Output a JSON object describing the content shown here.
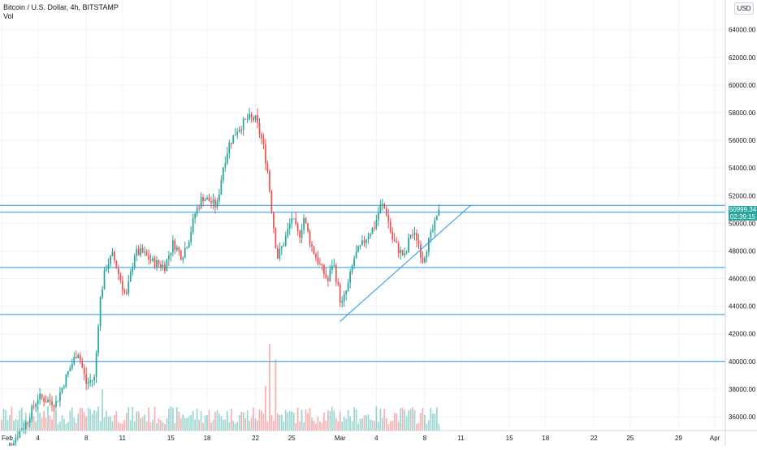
{
  "header": {
    "title": "Bitcoin / U.S. Dollar, 4h, BITSTAMP",
    "vol_label": "Vol"
  },
  "currency_label": "USD",
  "price_tag": {
    "price": "50999.34",
    "countdown": "02:39:15"
  },
  "colors": {
    "up": "#26a69a",
    "down": "#ef5350",
    "line": "#2196f3",
    "grid": "#f0f3fa",
    "axis_text": "#131722"
  },
  "chart_data": {
    "type": "candlestick",
    "y_ticks": [
      36000,
      38000,
      40000,
      42000,
      44000,
      46000,
      48000,
      50000,
      52000,
      54000,
      56000,
      58000,
      60000,
      62000,
      64000
    ],
    "y_tick_labels": [
      "36000.00",
      "38000.00",
      "40000.00",
      "42000.00",
      "44000.00",
      "46000.00",
      "48000.00",
      "50000.00",
      "52000.00",
      "54000.00",
      "56000.00",
      "58000.00",
      "60000.00",
      "62000.00",
      "64000.00"
    ],
    "ylim": [
      35000,
      65100
    ],
    "x_tick_labels": [
      "Feb",
      "4",
      "8",
      "11",
      "15",
      "18",
      "22",
      "25",
      "Mar",
      "4",
      "8",
      "11",
      "15",
      "18",
      "22",
      "25",
      "29",
      "Apr"
    ],
    "x_tick_days": [
      0,
      3,
      7,
      10,
      14,
      17,
      21,
      24,
      28,
      31,
      35,
      38,
      42,
      45,
      49,
      52,
      56,
      59
    ],
    "xlim_days": [
      0,
      60
    ],
    "horizontal_levels": [
      51300,
      50800,
      46800,
      43400,
      40000
    ],
    "trendline": {
      "from": {
        "day": 28.0,
        "price": 42900
      },
      "to": {
        "day": 38.8,
        "price": 51300
      }
    },
    "last_price": 50999.34,
    "anchors": [
      {
        "day": 0,
        "price": 33200
      },
      {
        "day": 2,
        "price": 35500
      },
      {
        "day": 3,
        "price": 37400
      },
      {
        "day": 4.5,
        "price": 37000
      },
      {
        "day": 5.5,
        "price": 39200
      },
      {
        "day": 6.3,
        "price": 40800
      },
      {
        "day": 7,
        "price": 38400
      },
      {
        "day": 7.7,
        "price": 38800
      },
      {
        "day": 8.1,
        "price": 44200
      },
      {
        "day": 8.6,
        "price": 46800
      },
      {
        "day": 9.2,
        "price": 47700
      },
      {
        "day": 9.8,
        "price": 46000
      },
      {
        "day": 10.3,
        "price": 44600
      },
      {
        "day": 11,
        "price": 47800
      },
      {
        "day": 11.6,
        "price": 47900
      },
      {
        "day": 12.5,
        "price": 47200
      },
      {
        "day": 13.5,
        "price": 46900
      },
      {
        "day": 14.2,
        "price": 48600
      },
      {
        "day": 14.9,
        "price": 47600
      },
      {
        "day": 15.5,
        "price": 48900
      },
      {
        "day": 16,
        "price": 50700
      },
      {
        "day": 16.6,
        "price": 51900
      },
      {
        "day": 17.2,
        "price": 51600
      },
      {
        "day": 17.8,
        "price": 51200
      },
      {
        "day": 18.3,
        "price": 54000
      },
      {
        "day": 18.8,
        "price": 55700
      },
      {
        "day": 19.5,
        "price": 56800
      },
      {
        "day": 20.4,
        "price": 57600
      },
      {
        "day": 21.0,
        "price": 57500
      },
      {
        "day": 21.6,
        "price": 55800
      },
      {
        "day": 22.0,
        "price": 53800
      },
      {
        "day": 22.4,
        "price": 50500
      },
      {
        "day": 22.8,
        "price": 47500
      },
      {
        "day": 23.4,
        "price": 48700
      },
      {
        "day": 24.0,
        "price": 50400
      },
      {
        "day": 24.6,
        "price": 49000
      },
      {
        "day": 25.0,
        "price": 50400
      },
      {
        "day": 25.6,
        "price": 48400
      },
      {
        "day": 26.3,
        "price": 47000
      },
      {
        "day": 27.0,
        "price": 45800
      },
      {
        "day": 27.4,
        "price": 47300
      },
      {
        "day": 27.9,
        "price": 45000
      },
      {
        "day": 28.1,
        "price": 44000
      },
      {
        "day": 28.6,
        "price": 45300
      },
      {
        "day": 29.2,
        "price": 47600
      },
      {
        "day": 29.8,
        "price": 48400
      },
      {
        "day": 30.3,
        "price": 49200
      },
      {
        "day": 30.8,
        "price": 49700
      },
      {
        "day": 31.4,
        "price": 51400
      },
      {
        "day": 31.8,
        "price": 50900
      },
      {
        "day": 32.3,
        "price": 48900
      },
      {
        "day": 32.9,
        "price": 48000
      },
      {
        "day": 33.4,
        "price": 47500
      },
      {
        "day": 33.8,
        "price": 49300
      },
      {
        "day": 34.4,
        "price": 48900
      },
      {
        "day": 34.8,
        "price": 47300
      },
      {
        "day": 35.3,
        "price": 48600
      },
      {
        "day": 35.8,
        "price": 49800
      },
      {
        "day": 36.3,
        "price": 51100
      }
    ],
    "volume_spikes": [
      {
        "day": 22.2,
        "height": 0.93
      },
      {
        "day": 22.6,
        "height": 0.76
      },
      {
        "day": 21.9,
        "height": 0.48
      },
      {
        "day": 8.3,
        "height": 0.44
      }
    ]
  }
}
